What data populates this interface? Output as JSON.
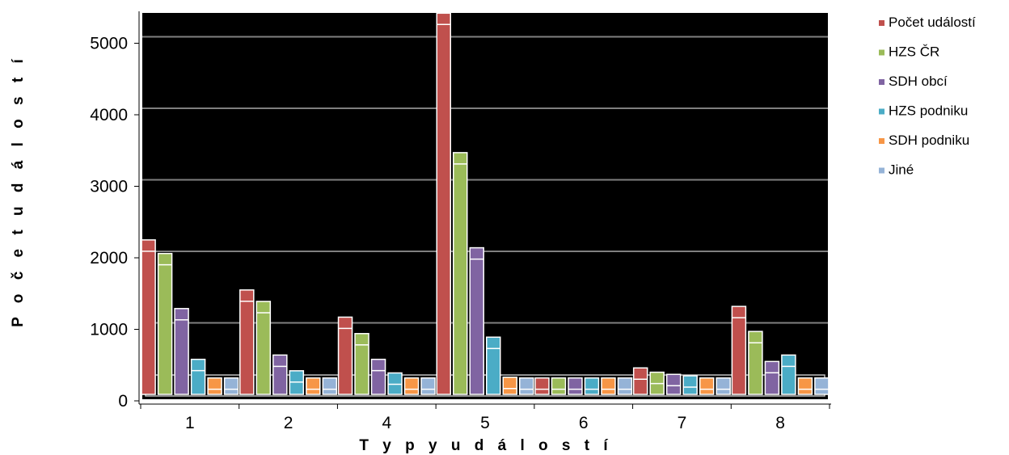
{
  "chart_data": {
    "type": "bar",
    "title": "",
    "xlabel": "T y p y  u d á l o s t í",
    "ylabel": "P o č e t  u d á l o s t í",
    "categories": [
      "1",
      "2",
      "4",
      "5",
      "6",
      "7",
      "8"
    ],
    "ylim": [
      0,
      5400
    ],
    "yticks": [
      0,
      1000,
      2000,
      3000,
      4000,
      5000
    ],
    "grid": true,
    "legend_position": "right",
    "background": "#000000",
    "series": [
      {
        "name": "Počet událostí",
        "color": "#c0504d",
        "values": [
          2160,
          1460,
          1080,
          5330,
          230,
          370,
          1230
        ]
      },
      {
        "name": "HZS ČR",
        "color": "#9bbb59",
        "values": [
          1970,
          1300,
          850,
          3380,
          230,
          310,
          880
        ]
      },
      {
        "name": "SDH obcí",
        "color": "#8064a2",
        "values": [
          1200,
          550,
          490,
          2050,
          230,
          280,
          460
        ]
      },
      {
        "name": "HZS podniku",
        "color": "#4bacc6",
        "values": [
          490,
          330,
          300,
          800,
          230,
          260,
          550
        ]
      },
      {
        "name": "SDH podniku",
        "color": "#f79646",
        "values": [
          230,
          230,
          230,
          240,
          230,
          230,
          230
        ]
      },
      {
        "name": "Jiné",
        "color": "#95b3d7",
        "values": [
          230,
          230,
          230,
          230,
          230,
          230,
          230
        ]
      }
    ]
  }
}
